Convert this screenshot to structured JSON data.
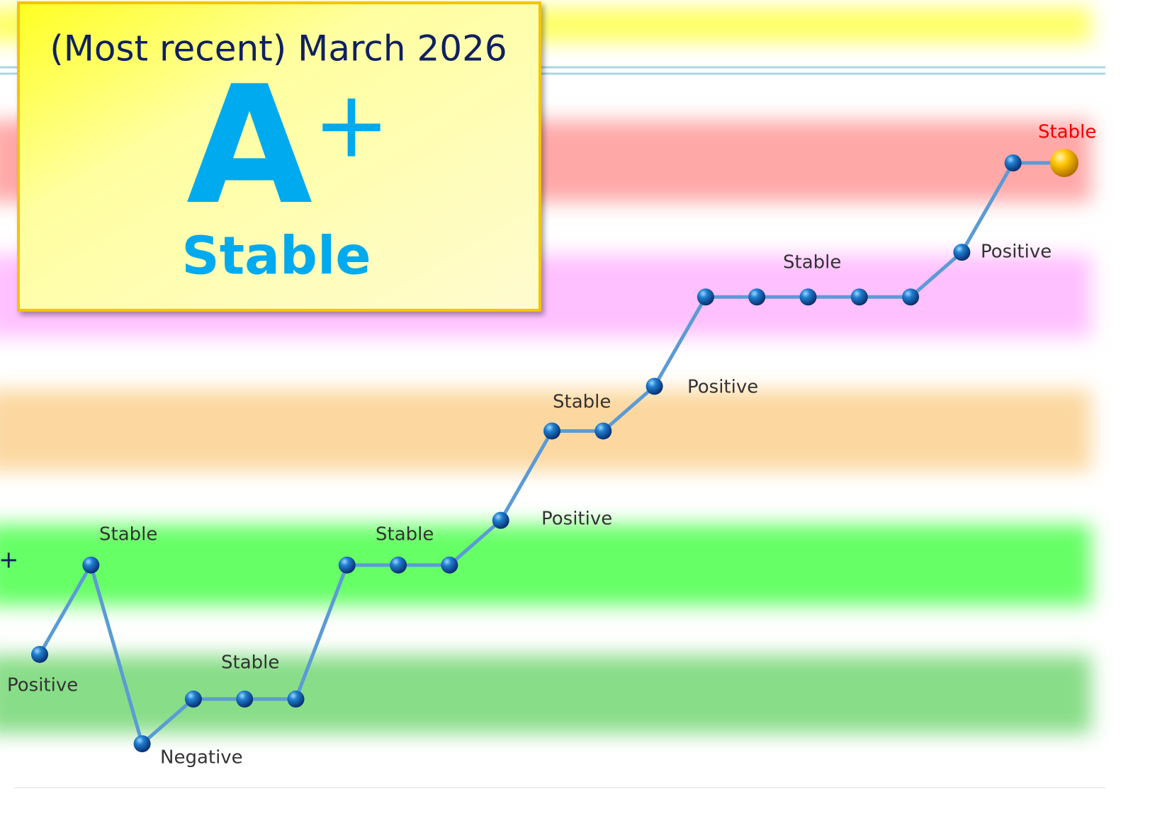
{
  "header": {
    "period": "(Most recent) March 2026",
    "rating": "A",
    "modifier": "+",
    "outlook": "Stable"
  },
  "chart_data": {
    "type": "line",
    "categories": [
      null,
      null,
      null,
      null,
      null,
      null,
      null,
      null,
      null,
      null,
      null,
      null,
      null,
      null,
      null,
      null,
      null,
      null,
      null,
      null,
      null
    ],
    "values": [
      2,
      4,
      0,
      1,
      1,
      1,
      4,
      4,
      4,
      5,
      7,
      7,
      8,
      10,
      10,
      10,
      10,
      10,
      11,
      13,
      13
    ],
    "ylim": [
      0,
      13
    ],
    "color": "#5b9bd5",
    "annotations": [
      "Positive",
      "Stable",
      "Negative",
      "Stable",
      "Stable",
      "Positive",
      "Stable",
      "Positive",
      "Stable",
      "Positive",
      "Stable",
      "+"
    ]
  }
}
